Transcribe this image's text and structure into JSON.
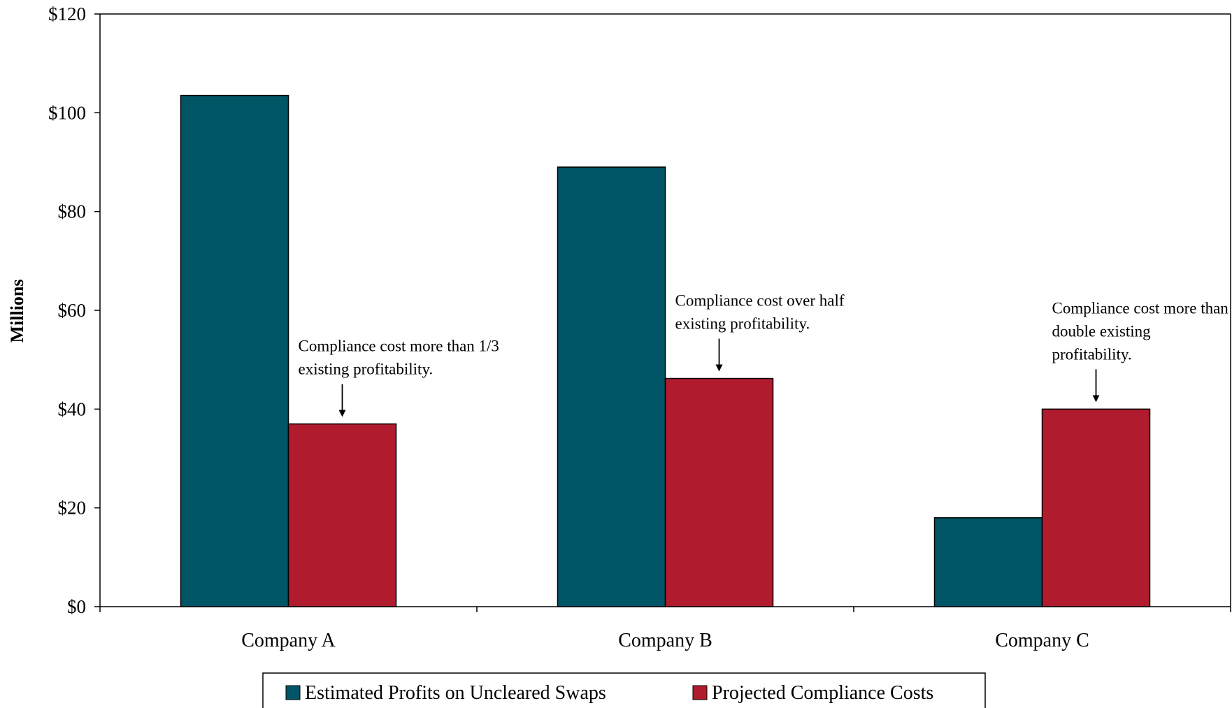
{
  "chart_data": {
    "type": "bar",
    "title": "",
    "xlabel": "",
    "ylabel": "Millions",
    "categories": [
      "Company A",
      "Company B",
      "Company C"
    ],
    "series": [
      {
        "name": "Estimated Profits on Uncleared Swaps",
        "color": "#005566",
        "values": [
          103.5,
          89,
          18
        ]
      },
      {
        "name": "Projected Compliance Costs",
        "color": "#B01C2E",
        "values": [
          37,
          46.2,
          40
        ]
      }
    ],
    "ylim": [
      0,
      120
    ],
    "yticks": [
      0,
      20,
      40,
      60,
      80,
      100,
      120
    ],
    "ytick_labels": [
      "$0",
      "$20",
      "$40",
      "$60",
      "$80",
      "$100",
      "$120"
    ],
    "grid": false,
    "legend_position": "bottom",
    "annotations": [
      {
        "category": "Company A",
        "lines": [
          "Compliance cost more than 1/3",
          "existing profitability."
        ]
      },
      {
        "category": "Company B",
        "lines": [
          "Compliance cost over half",
          "existing profitability."
        ]
      },
      {
        "category": "Company C",
        "lines": [
          "Compliance cost more than",
          "double existing",
          "profitability."
        ]
      }
    ]
  }
}
